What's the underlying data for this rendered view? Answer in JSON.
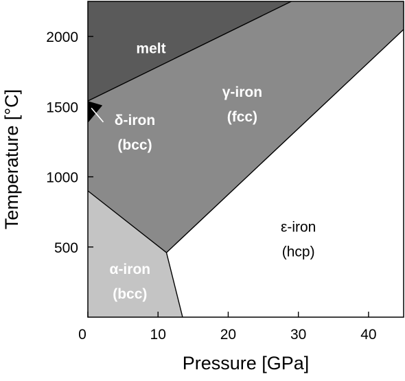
{
  "chart_data": {
    "type": "phase-diagram",
    "xlabel": "Pressure [GPa]",
    "ylabel": "Temperature [°C]",
    "xlim": [
      0,
      45
    ],
    "ylim": [
      0,
      2250
    ],
    "x_ticks": [
      0,
      10,
      20,
      30,
      40
    ],
    "y_ticks": [
      500,
      1000,
      1500,
      2000
    ],
    "x_tick_labels": [
      "0",
      "10",
      "20",
      "30",
      "40"
    ],
    "y_tick_labels": [
      "500",
      "1000",
      "1500",
      "2000"
    ],
    "regions": [
      {
        "id": "melt",
        "label_lines": [
          "melt"
        ],
        "label_at": [
          9,
          1920
        ],
        "label_color": "#ffffff",
        "bold": true,
        "fill": "#5a5a5a",
        "polygon": [
          [
            0,
            2250
          ],
          [
            29,
            2250
          ],
          [
            0,
            1540
          ]
        ]
      },
      {
        "id": "gamma",
        "label_lines": [
          "γ-iron",
          "(fcc)"
        ],
        "label_at": [
          22,
          1520
        ],
        "label_color": "#ffffff",
        "bold": true,
        "fill": "#8a8a8a",
        "polygon": [
          [
            0,
            1540
          ],
          [
            29,
            2250
          ],
          [
            45,
            2250
          ],
          [
            45,
            2050
          ],
          [
            11.2,
            460
          ],
          [
            0,
            900
          ]
        ]
      },
      {
        "id": "delta",
        "label_lines": [
          "δ-iron",
          "(bcc)"
        ],
        "label_at": [
          6.7,
          1320
        ],
        "label_color": "#ffffff",
        "bold": true,
        "fill": "#000000",
        "polygon": [
          [
            0,
            1540
          ],
          [
            2,
            1510
          ],
          [
            0,
            1390
          ]
        ]
      },
      {
        "id": "alpha",
        "label_lines": [
          "α-iron",
          "(bcc)"
        ],
        "label_at": [
          6,
          260
        ],
        "label_color": "#ffffff",
        "bold": true,
        "fill": "#c4c4c4",
        "polygon": [
          [
            0,
            900
          ],
          [
            11.2,
            460
          ],
          [
            13.5,
            0
          ],
          [
            0,
            0
          ]
        ]
      },
      {
        "id": "epsilon",
        "label_lines": [
          "ε-iron",
          "(hcp)"
        ],
        "label_at": [
          30,
          560
        ],
        "label_color": "#000000",
        "bold": false,
        "fill": "#ffffff",
        "polygon": [
          [
            11.2,
            460
          ],
          [
            45,
            2050
          ],
          [
            45,
            0
          ],
          [
            13.5,
            0
          ]
        ]
      }
    ],
    "boundaries": [
      [
        [
          0,
          1540
        ],
        [
          29,
          2250
        ]
      ],
      [
        [
          0,
          900
        ],
        [
          11.2,
          460
        ]
      ],
      [
        [
          11.2,
          460
        ],
        [
          45,
          2050
        ]
      ],
      [
        [
          11.2,
          460
        ],
        [
          13.5,
          0
        ]
      ],
      [
        [
          0,
          1390
        ],
        [
          2,
          1510
        ]
      ]
    ],
    "leader_line": [
      [
        0.5,
        1490
      ],
      [
        2.2,
        1390
      ]
    ]
  }
}
